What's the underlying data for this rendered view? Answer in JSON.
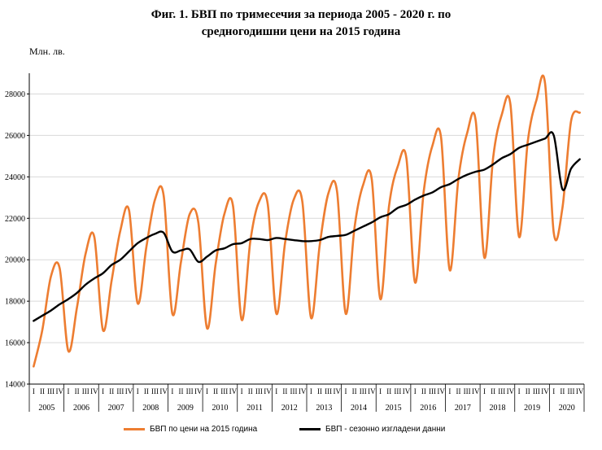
{
  "title_line1": "Фиг. 1. БВП по тримесечия за периода 2005 - 2020 г. по",
  "title_line2": "средногодишни цени на 2015 година",
  "colors": {
    "gdp": "#ED7D31",
    "sa": "#000000",
    "grid": "#d9d9d9"
  },
  "chart_data": {
    "type": "line",
    "title": "Фиг. 1. БВП по тримесечия за периода 2005 - 2020 г. по средногодишни цени на 2015 година",
    "ylabel": "Млн. лв.",
    "xlabel": "",
    "ylim": [
      14000,
      29000
    ],
    "yticks": [
      14000,
      16000,
      18000,
      20000,
      22000,
      24000,
      26000,
      28000
    ],
    "grid": true,
    "legend_position": "bottom",
    "quarter_labels": [
      "I",
      "II",
      "III",
      "IV"
    ],
    "years": [
      "2005",
      "2006",
      "2007",
      "2008",
      "2009",
      "2010",
      "2011",
      "2012",
      "2013",
      "2014",
      "2015",
      "2016",
      "2017",
      "2018",
      "2019",
      "2020"
    ],
    "series": [
      {
        "name": "БВП по цени на 2015 година",
        "values": [
          14850,
          16600,
          19200,
          19600,
          15600,
          17700,
          20300,
          21100,
          16600,
          19000,
          21400,
          22400,
          17900,
          20600,
          22900,
          23100,
          17400,
          19900,
          22200,
          21800,
          16700,
          19800,
          22200,
          22600,
          17100,
          20900,
          22800,
          22700,
          17400,
          20800,
          22900,
          22800,
          17200,
          20700,
          23200,
          23300,
          17400,
          21500,
          23600,
          23900,
          18100,
          22600,
          24500,
          24900,
          18900,
          23300,
          25500,
          25900,
          19500,
          23900,
          26100,
          26700,
          20100,
          24900,
          27000,
          27500,
          21100,
          25700,
          27700,
          28500,
          21300,
          22500,
          26700,
          27100
        ]
      },
      {
        "name": "БВП - сезонно изгладени данни",
        "values": [
          17050,
          17300,
          17550,
          17850,
          18100,
          18400,
          18800,
          19100,
          19350,
          19750,
          20000,
          20400,
          20800,
          21050,
          21250,
          21300,
          20400,
          20450,
          20500,
          19900,
          20150,
          20450,
          20550,
          20750,
          20800,
          21000,
          21000,
          20950,
          21050,
          21000,
          20950,
          20900,
          20900,
          20950,
          21100,
          21150,
          21200,
          21400,
          21600,
          21800,
          22050,
          22200,
          22500,
          22650,
          22900,
          23100,
          23250,
          23500,
          23650,
          23900,
          24100,
          24250,
          24350,
          24600,
          24900,
          25100,
          25400,
          25550,
          25700,
          25850,
          26000,
          23400,
          24400,
          24850
        ]
      }
    ]
  }
}
